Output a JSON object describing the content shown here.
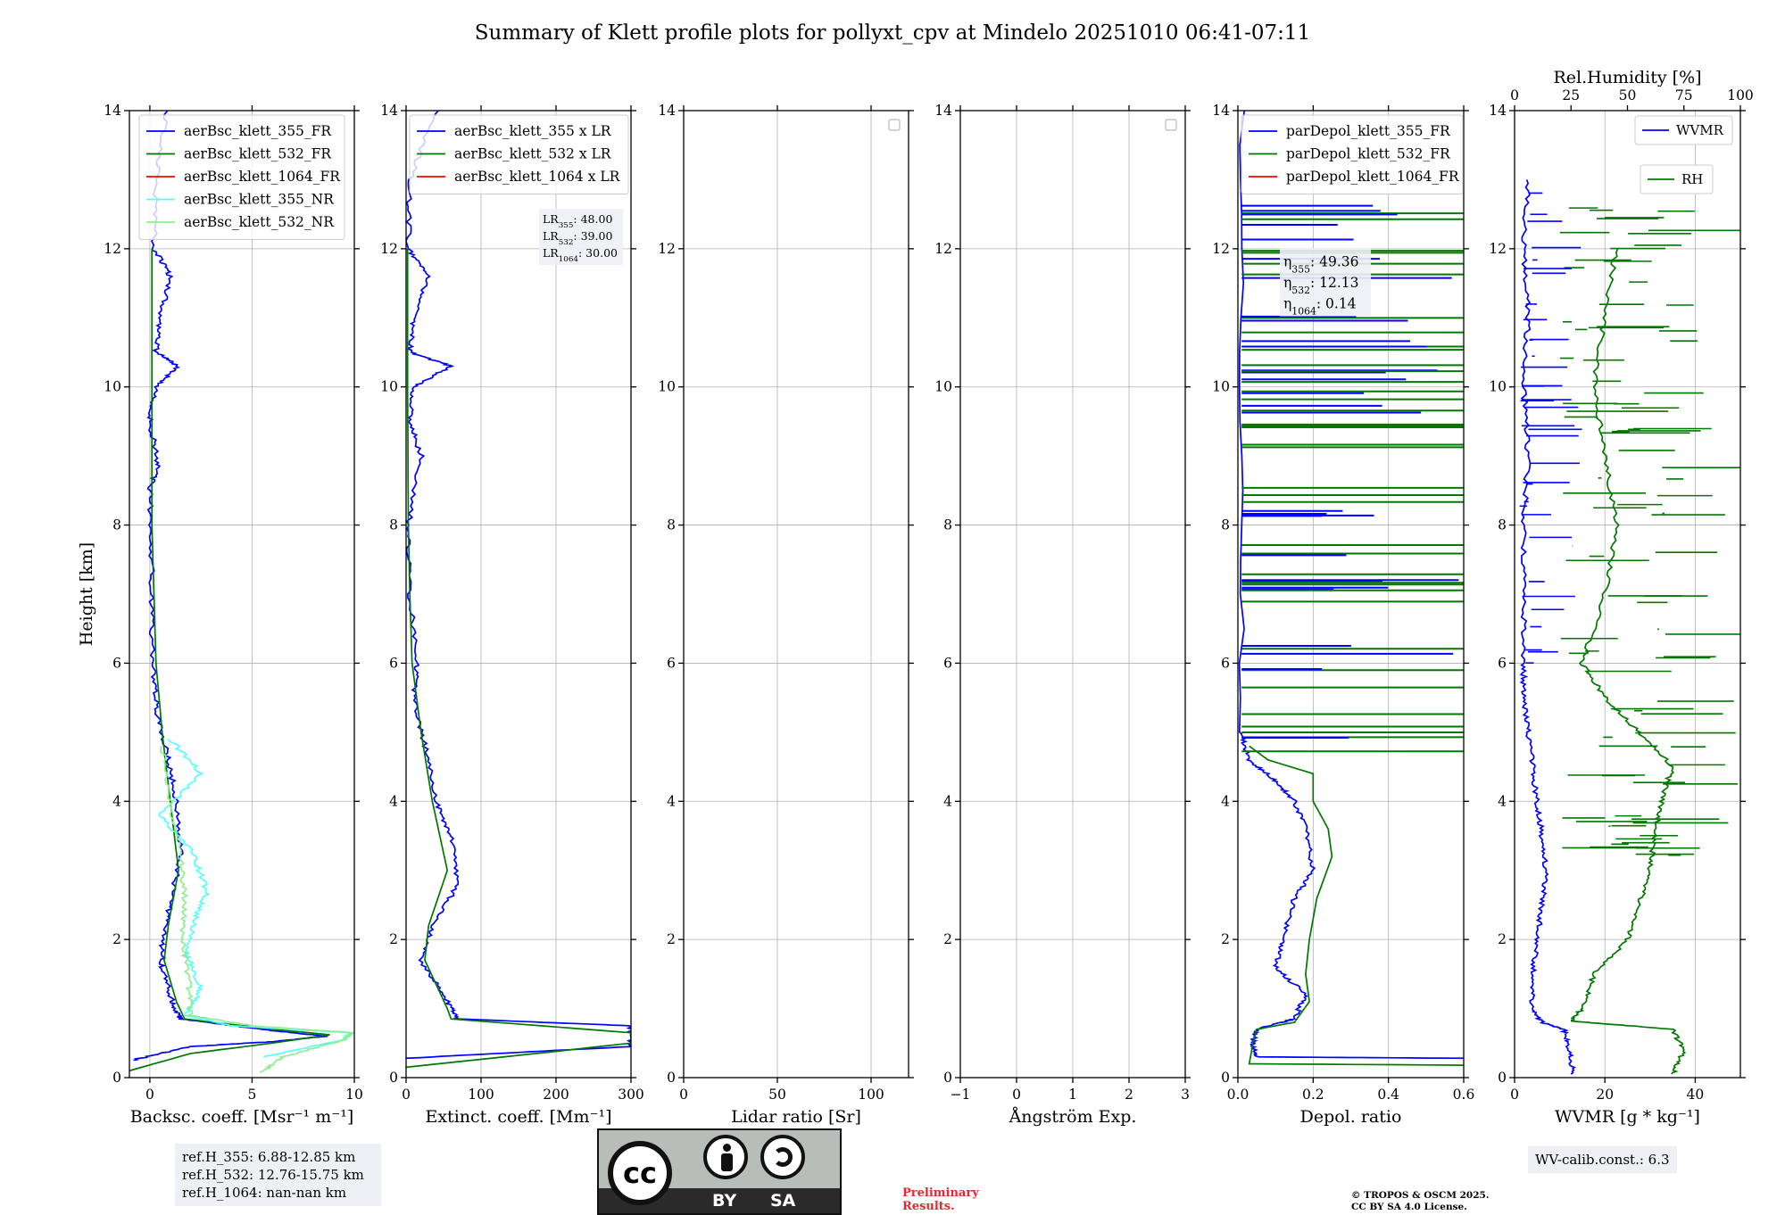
{
  "suptitle": "Summary of Klett profile plots for pollyxt_cpv at Mindelo 20251010 06:41-07:11",
  "colors": {
    "blue": "#0000ff",
    "green": "#007700",
    "red": "#ff0000",
    "cyan": "#55ffff",
    "lightgreen": "#90ee90",
    "lightblue": "#b8c4ee"
  },
  "chart_data": [
    {
      "id": "bsc",
      "type": "line",
      "xlabel": "Backsc. coeff. [Msr⁻¹ m⁻¹]",
      "ylabel": "Height [km]",
      "xlim": [
        -1,
        10
      ],
      "ylim": [
        0,
        14
      ],
      "xticks": [
        0,
        5,
        10
      ],
      "xtick_labels": [
        "0",
        "5",
        "10"
      ],
      "yticks": [
        0,
        2,
        4,
        6,
        8,
        10,
        12,
        14
      ],
      "grid": true,
      "legend": "top-right",
      "series": [
        {
          "name": "aerBsc_klett_355_FR",
          "color": "#0000ff",
          "kind": "noisy",
          "points": [
            [
              -0.9,
              0.25
            ],
            [
              2,
              0.45
            ],
            [
              6,
              0.52
            ],
            [
              8.6,
              0.6
            ],
            [
              6,
              0.68
            ],
            [
              1.5,
              0.85
            ],
            [
              1.1,
              1.1
            ],
            [
              0.6,
              1.6
            ],
            [
              0.6,
              2.0
            ],
            [
              1.0,
              2.5
            ],
            [
              1.5,
              3.2
            ],
            [
              1.3,
              4.0
            ],
            [
              0.9,
              4.6
            ],
            [
              0.4,
              5.2
            ],
            [
              0.2,
              5.8
            ],
            [
              0.1,
              6.5
            ],
            [
              0.1,
              7.5
            ],
            [
              0,
              8.5
            ],
            [
              0.4,
              8.9
            ],
            [
              0,
              9.5
            ],
            [
              0.3,
              10.0
            ],
            [
              1.4,
              10.3
            ],
            [
              0.3,
              10.5
            ],
            [
              0.5,
              11.0
            ],
            [
              1.0,
              11.6
            ],
            [
              0.2,
              12.0
            ],
            [
              0.3,
              13.0
            ],
            [
              0.8,
              14.0
            ]
          ]
        },
        {
          "name": "aerBsc_klett_532_FR",
          "color": "#007700",
          "kind": "smooth",
          "points": [
            [
              -1,
              0.1
            ],
            [
              2,
              0.35
            ],
            [
              6,
              0.5
            ],
            [
              8.8,
              0.62
            ],
            [
              6,
              0.7
            ],
            [
              1.7,
              0.85
            ],
            [
              1.3,
              1.1
            ],
            [
              0.7,
              1.7
            ],
            [
              0.9,
              2.2
            ],
            [
              1.4,
              3.0
            ],
            [
              1.0,
              4.0
            ],
            [
              0.6,
              5.0
            ],
            [
              0.3,
              6.0
            ],
            [
              0.2,
              7.0
            ],
            [
              0.1,
              8.0
            ],
            [
              0.1,
              10.0
            ],
            [
              0.1,
              12.0
            ]
          ]
        },
        {
          "name": "aerBsc_klett_1064_FR",
          "color": "#ff0000",
          "kind": "none",
          "points": []
        },
        {
          "name": "aerBsc_klett_355_NR",
          "color": "#55ffff",
          "kind": "noisy",
          "points": [
            [
              5.5,
              0.3
            ],
            [
              9.5,
              0.55
            ],
            [
              9.8,
              0.65
            ],
            [
              4,
              0.75
            ],
            [
              1.8,
              0.9
            ],
            [
              2.5,
              1.3
            ],
            [
              1.8,
              1.8
            ],
            [
              2.2,
              2.3
            ],
            [
              2.8,
              2.7
            ],
            [
              2.0,
              3.3
            ],
            [
              0.5,
              3.8
            ],
            [
              2.5,
              4.4
            ],
            [
              1.0,
              4.9
            ]
          ]
        },
        {
          "name": "aerBsc_klett_532_NR",
          "color": "#90ee90",
          "kind": "noisy",
          "points": [
            [
              5.5,
              0.08
            ],
            [
              6.5,
              0.3
            ],
            [
              9.5,
              0.55
            ],
            [
              9.9,
              0.65
            ],
            [
              5,
              0.75
            ],
            [
              2,
              0.9
            ],
            [
              1.9,
              1.4
            ],
            [
              1.6,
              2.0
            ],
            [
              1.7,
              2.6
            ],
            [
              1.5,
              3.2
            ],
            [
              1.0,
              4.0
            ],
            [
              0.6,
              4.8
            ]
          ]
        }
      ]
    },
    {
      "id": "ext",
      "type": "line",
      "xlabel": "Extinct. coeff. [Mm⁻¹]",
      "xlim": [
        0,
        300
      ],
      "ylim": [
        0,
        14
      ],
      "xticks": [
        0,
        100,
        200,
        300
      ],
      "xtick_labels": [
        "0",
        "100",
        "200",
        "300"
      ],
      "yticks": [
        0,
        2,
        4,
        6,
        8,
        10,
        12,
        14
      ],
      "grid": true,
      "legend": "top-left",
      "series": [
        {
          "name": "aerBsc_klett_355 x LR",
          "color": "#0000ff",
          "kind": "noisy",
          "points": [
            [
              0,
              0.28
            ],
            [
              300,
              0.45
            ],
            [
              300,
              0.75
            ],
            [
              70,
              0.85
            ],
            [
              55,
              1.1
            ],
            [
              20,
              1.7
            ],
            [
              35,
              2.2
            ],
            [
              70,
              2.8
            ],
            [
              60,
              3.5
            ],
            [
              40,
              4.0
            ],
            [
              25,
              4.8
            ],
            [
              10,
              5.5
            ],
            [
              15,
              6.0
            ],
            [
              5,
              7.0
            ],
            [
              3,
              8.0
            ],
            [
              20,
              9.0
            ],
            [
              5,
              9.5
            ],
            [
              10,
              10.0
            ],
            [
              60,
              10.3
            ],
            [
              5,
              10.5
            ],
            [
              10,
              11.0
            ],
            [
              30,
              11.6
            ],
            [
              3,
              12.0
            ],
            [
              5,
              13.0
            ],
            [
              40,
              14.0
            ]
          ]
        },
        {
          "name": "aerBsc_klett_532 x LR",
          "color": "#007700",
          "kind": "smooth",
          "points": [
            [
              0,
              0.15
            ],
            [
              200,
              0.38
            ],
            [
              300,
              0.5
            ],
            [
              300,
              0.65
            ],
            [
              60,
              0.85
            ],
            [
              55,
              1.0
            ],
            [
              25,
              1.7
            ],
            [
              30,
              2.2
            ],
            [
              55,
              3.0
            ],
            [
              35,
              4.0
            ],
            [
              20,
              5.0
            ],
            [
              8,
              6.0
            ],
            [
              5,
              7.0
            ],
            [
              3,
              8.0
            ],
            [
              2,
              10.0
            ],
            [
              2,
              12.0
            ]
          ]
        },
        {
          "name": "aerBsc_klett_1064 x LR",
          "color": "#ff0000",
          "kind": "none",
          "points": []
        }
      ],
      "annotation": [
        "LR355: 48.00",
        "LR532: 39.00",
        "LR1064: 30.00"
      ]
    },
    {
      "id": "lr",
      "type": "line",
      "xlabel": "Lidar ratio [Sr]",
      "xlim": [
        0,
        120
      ],
      "ylim": [
        0,
        14
      ],
      "xticks": [
        0,
        50,
        100
      ],
      "xtick_labels": [
        "0",
        "50",
        "100"
      ],
      "yticks": [
        0,
        2,
        4,
        6,
        8,
        10,
        12,
        14
      ],
      "grid": true,
      "legend": "top-right",
      "series": []
    },
    {
      "id": "ae",
      "type": "line",
      "xlabel": "Ångström Exp.",
      "xlim": [
        -1,
        3
      ],
      "ylim": [
        0,
        14
      ],
      "xticks": [
        -1,
        0,
        1,
        2,
        3
      ],
      "xtick_labels": [
        "−1",
        "0",
        "1",
        "2",
        "3"
      ],
      "yticks": [
        0,
        2,
        4,
        6,
        8,
        10,
        12,
        14
      ],
      "grid": true,
      "legend": "top-right",
      "series": []
    },
    {
      "id": "depol",
      "type": "line",
      "xlabel": "Depol. ratio",
      "xlim": [
        0,
        0.6
      ],
      "ylim": [
        0,
        14
      ],
      "xticks": [
        0,
        0.2,
        0.4,
        0.6
      ],
      "xtick_labels": [
        "0.0",
        "0.2",
        "0.4",
        "0.6"
      ],
      "yticks": [
        0,
        2,
        4,
        6,
        8,
        10,
        12,
        14
      ],
      "grid": true,
      "legend": "top-left",
      "series": [
        {
          "name": "parDepol_klett_355_FR",
          "color": "#0000ff",
          "kind": "noisy",
          "points": [
            [
              0.6,
              0.28
            ],
            [
              0.05,
              0.3
            ],
            [
              0.04,
              0.5
            ],
            [
              0.05,
              0.7
            ],
            [
              0.15,
              0.85
            ],
            [
              0.18,
              1.2
            ],
            [
              0.1,
              1.6
            ],
            [
              0.12,
              2.0
            ],
            [
              0.15,
              2.6
            ],
            [
              0.2,
              3.0
            ],
            [
              0.18,
              3.6
            ],
            [
              0.15,
              4.0
            ],
            [
              0.1,
              4.3
            ],
            [
              0.03,
              4.6
            ],
            [
              0.01,
              5.0
            ],
            [
              0.01,
              14.0
            ]
          ]
        },
        {
          "name": "parDepol_klett_532_FR",
          "color": "#007700",
          "kind": "smooth",
          "points": [
            [
              0.6,
              0.18
            ],
            [
              0.03,
              0.2
            ],
            [
              0.04,
              0.5
            ],
            [
              0.05,
              0.7
            ],
            [
              0.15,
              0.8
            ],
            [
              0.19,
              1.1
            ],
            [
              0.18,
              1.5
            ],
            [
              0.19,
              2.0
            ],
            [
              0.21,
              2.6
            ],
            [
              0.25,
              3.2
            ],
            [
              0.24,
              3.6
            ],
            [
              0.2,
              4.0
            ],
            [
              0.2,
              4.4
            ],
            [
              0.08,
              4.6
            ],
            [
              0.03,
              4.8
            ]
          ]
        },
        {
          "name": "parDepol_klett_1064_FR",
          "color": "#ff0000",
          "kind": "none",
          "points": []
        }
      ],
      "annotation": [
        "η355: 49.36",
        "η532: 12.13",
        "η1064: 0.14"
      ]
    },
    {
      "id": "wv",
      "type": "line",
      "xlabel": "WVMR [g * kg⁻¹]",
      "x2label": "Rel.Humidity [%]",
      "xlim": [
        0,
        50
      ],
      "x2lim": [
        0,
        100
      ],
      "ylim": [
        0,
        14
      ],
      "xticks": [
        0,
        20,
        40
      ],
      "xtick_labels": [
        "0",
        "20",
        "40"
      ],
      "x2ticks": [
        0,
        25,
        50,
        75,
        100
      ],
      "x2tick_labels": [
        "0",
        "25",
        "50",
        "75",
        "100"
      ],
      "yticks": [
        0,
        2,
        4,
        6,
        8,
        10,
        12,
        14
      ],
      "grid": true,
      "series": [
        {
          "name": "WVMR",
          "color": "#0000ff",
          "kind": "noisy",
          "points": [
            [
              13,
              0.05
            ],
            [
              12,
              0.4
            ],
            [
              11,
              0.7
            ],
            [
              6,
              0.8
            ],
            [
              4,
              1.0
            ],
            [
              4,
              1.5
            ],
            [
              5,
              2.0
            ],
            [
              6,
              2.5
            ],
            [
              7,
              3.0
            ],
            [
              6,
              3.5
            ],
            [
              5,
              4.0
            ],
            [
              4,
              4.5
            ],
            [
              3,
              5.0
            ],
            [
              2,
              5.5
            ],
            [
              2,
              6.0
            ],
            [
              2,
              7.0
            ],
            [
              2,
              8.0
            ],
            [
              3,
              9.0
            ],
            [
              2,
              10.0
            ],
            [
              3,
              11.0
            ],
            [
              2,
              12.0
            ],
            [
              3,
              13.0
            ]
          ]
        },
        {
          "name": "RH",
          "color": "#007700",
          "kind": "noisy",
          "axis": "x2",
          "points": [
            [
              70,
              0.05
            ],
            [
              75,
              0.4
            ],
            [
              70,
              0.7
            ],
            [
              25,
              0.82
            ],
            [
              30,
              1.0
            ],
            [
              35,
              1.5
            ],
            [
              50,
              2.0
            ],
            [
              55,
              2.5
            ],
            [
              60,
              3.0
            ],
            [
              62,
              3.5
            ],
            [
              65,
              4.0
            ],
            [
              70,
              4.5
            ],
            [
              55,
              5.0
            ],
            [
              40,
              5.5
            ],
            [
              30,
              6.0
            ],
            [
              40,
              7.0
            ],
            [
              45,
              8.0
            ],
            [
              40,
              9.0
            ],
            [
              35,
              10.0
            ],
            [
              40,
              11.0
            ],
            [
              45,
              12.0
            ]
          ]
        }
      ]
    }
  ],
  "annotations": {
    "refh": [
      "ref.H_355: 6.88-12.85 km",
      "ref.H_532: 12.76-15.75 km",
      "ref.H_1064: nan-nan km"
    ],
    "wv_calib": "WV-calib.const.: 6.3",
    "preliminary": [
      "Preliminary",
      "Results."
    ],
    "copyright": [
      "© TROPOS & OSCM 2025.",
      "CC BY SA 4.0 License."
    ],
    "license_badge": {
      "cc": "cc",
      "by": "BY",
      "sa": "SA"
    }
  }
}
